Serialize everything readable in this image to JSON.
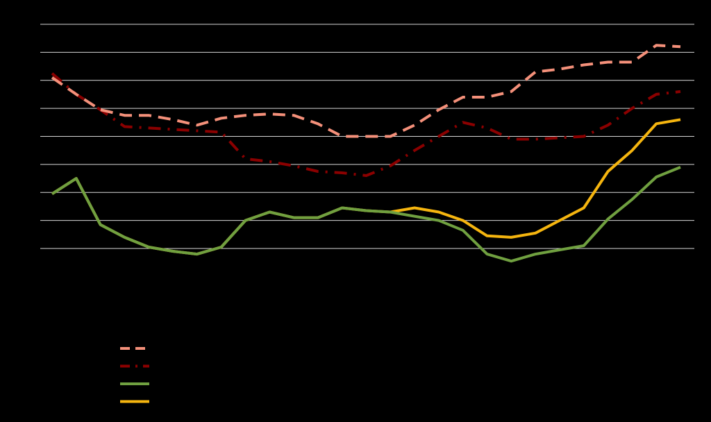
{
  "chart_data": {
    "type": "line",
    "title": "",
    "xlabel": "",
    "ylabel": "",
    "x": [
      1,
      2,
      3,
      4,
      5,
      6,
      7,
      8,
      9,
      10,
      11,
      12,
      13,
      14,
      15,
      16,
      17,
      18,
      19,
      20,
      21,
      22,
      23,
      24,
      25,
      26,
      27
    ],
    "ylim": [
      0,
      8
    ],
    "gridlines": [
      0,
      1,
      2,
      3,
      4,
      5,
      6,
      7,
      8
    ],
    "grid": true,
    "legend_position": "bottom-left",
    "series": [
      {
        "key": "series1",
        "color": "#f4907a",
        "dash": "long-dash",
        "values": [
          6.1,
          5.5,
          4.95,
          4.75,
          4.75,
          4.6,
          4.4,
          4.65,
          4.75,
          4.8,
          4.75,
          4.45,
          4.0,
          4.0,
          4.0,
          4.4,
          4.95,
          5.4,
          5.4,
          5.6,
          6.3,
          6.4,
          6.55,
          6.65,
          6.65,
          7.25,
          7.2
        ]
      },
      {
        "key": "series2",
        "color": "#8b0000",
        "dash": "dash-dot",
        "values": [
          6.25,
          5.5,
          4.95,
          4.35,
          4.3,
          4.25,
          4.2,
          4.15,
          3.2,
          3.1,
          2.95,
          2.75,
          2.7,
          2.6,
          2.95,
          3.5,
          4.0,
          4.5,
          4.3,
          3.9,
          3.9,
          3.95,
          4.0,
          4.4,
          5.0,
          5.5,
          5.6
        ]
      },
      {
        "key": "series3",
        "color": "#70a040",
        "dash": "solid",
        "values": [
          1.95,
          2.5,
          0.85,
          0.4,
          0.05,
          -0.1,
          -0.2,
          0.05,
          1.0,
          1.3,
          1.1,
          1.1,
          1.45,
          1.35,
          1.3,
          1.15,
          1.0,
          0.65,
          -0.2,
          -0.45,
          -0.2,
          -0.05,
          0.1,
          1.05,
          1.75,
          2.55,
          2.9
        ]
      },
      {
        "key": "series4",
        "color": "#f5b50f",
        "dash": "solid",
        "values": [
          1.95,
          2.5,
          0.85,
          0.4,
          0.05,
          -0.1,
          -0.2,
          0.05,
          1.0,
          1.3,
          1.1,
          1.1,
          1.45,
          1.35,
          1.3,
          1.45,
          1.3,
          1.0,
          0.45,
          0.4,
          0.55,
          1.0,
          1.45,
          2.75,
          3.5,
          4.45,
          4.6
        ]
      }
    ]
  }
}
